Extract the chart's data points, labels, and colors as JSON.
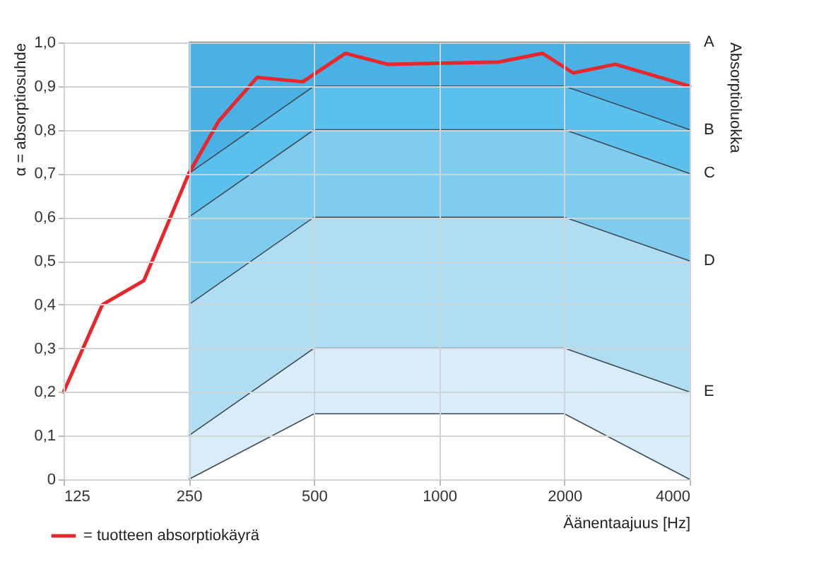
{
  "chart_data": {
    "type": "line",
    "xlabel": "Äänentaajuus [Hz]",
    "ylabel": "α = absorptiosuhde",
    "y2label": "Absorptioluokka",
    "log": "x",
    "grid": true,
    "legend": "bottom left",
    "xlim": [
      125,
      4000
    ],
    "xticks": [
      125,
      250,
      500,
      1000,
      2000,
      4000
    ],
    "ylim": [
      0,
      1
    ],
    "yticks": [
      0,
      {
        "value": 0.1,
        "label": "0,1"
      },
      {
        "value": 0.2,
        "label": "0,2"
      },
      {
        "value": 0.3,
        "label": "0,3"
      },
      {
        "value": 0.4,
        "label": "0,4"
      },
      {
        "value": 0.5,
        "label": "0,5"
      },
      {
        "value": 0.6,
        "label": "0,6"
      },
      {
        "value": 0.7,
        "label": "0,7"
      },
      {
        "value": 0.8,
        "label": "0,8"
      },
      {
        "value": 0.9,
        "label": "0,9"
      },
      {
        "value": 1,
        "label": "1,0"
      }
    ],
    "series": [
      {
        "name": "A",
        "type": "area",
        "color": "#4ab1e4",
        "x": [
          250,
          500,
          2000,
          4000
        ],
        "values": [
          1,
          1,
          1,
          1
        ]
      },
      {
        "name": "B",
        "type": "area",
        "color": "#5cc0ed",
        "x": [
          250,
          500,
          2000,
          4000
        ],
        "values": [
          0.7,
          0.9,
          0.9,
          0.8
        ]
      },
      {
        "name": "C",
        "type": "area",
        "color": "#80ccef",
        "x": [
          250,
          500,
          2000,
          4000
        ],
        "values": [
          0.6,
          0.8,
          0.8,
          0.7
        ]
      },
      {
        "name": "D",
        "type": "area",
        "color": "#b1ddf3",
        "x": [
          250,
          500,
          2000,
          4000
        ],
        "values": [
          0.4,
          0.6,
          0.6,
          0.5
        ]
      },
      {
        "name": "E",
        "type": "area",
        "color": "#d8edf9",
        "x": [
          250,
          500,
          2000,
          4000
        ],
        "values": [
          0.1,
          0.3,
          0.3,
          0.2
        ]
      },
      {
        "type": "area",
        "color": "#ffffff",
        "x": [
          250,
          500,
          2000,
          4000
        ],
        "values": [
          0,
          0.15,
          0.15,
          0
        ]
      },
      {
        "name": "= tuotteen absorptiokäyrä",
        "color": "#e8262b",
        "x": [
          125,
          155,
          195,
          250,
          295,
          365,
          470,
          595,
          750,
          1390,
          1770,
          2100,
          2650,
          4000
        ],
        "values": [
          0.2,
          0.4,
          0.455,
          0.7,
          0.82,
          0.92,
          0.91,
          0.975,
          0.95,
          0.955,
          0.975,
          0.93,
          0.95,
          0.9
        ]
      }
    ]
  }
}
